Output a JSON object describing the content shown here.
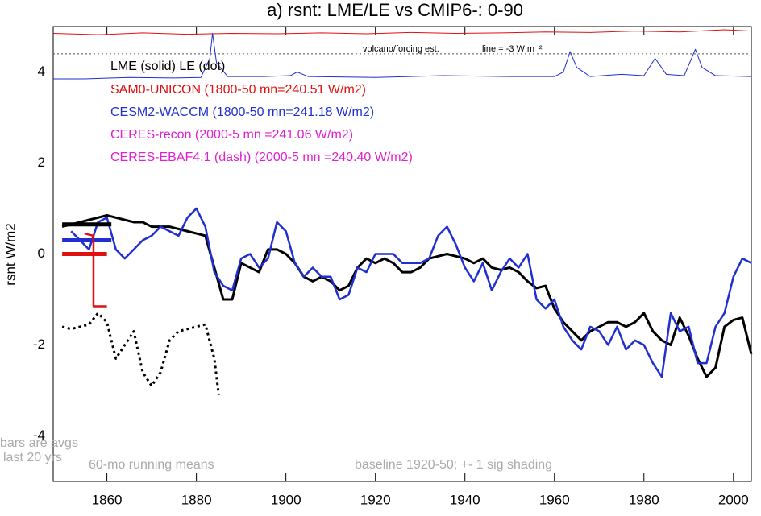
{
  "chart_data": {
    "type": "line",
    "title": "a) rsnt: LME/LE vs CMIP6-: 0-90",
    "y_label": "rsnt W/m2",
    "xlim": [
      1848,
      2004
    ],
    "ylim": [
      -5,
      5
    ],
    "xticks": [
      1860,
      1880,
      1900,
      1920,
      1940,
      1960,
      1980,
      2000
    ],
    "yticks": [
      -4,
      -2,
      0,
      2,
      4
    ],
    "zero_line": true,
    "series": [
      {
        "color": "#000000",
        "width": 3,
        "dash": "none",
        "x": [
          1850,
          1852,
          1854,
          1856,
          1858,
          1860,
          1862,
          1864,
          1866,
          1868,
          1870,
          1872,
          1874,
          1876,
          1878,
          1880,
          1882,
          1884,
          1886,
          1888,
          1890,
          1892,
          1894,
          1896,
          1898,
          1900,
          1902,
          1904,
          1906,
          1908,
          1910,
          1912,
          1914,
          1916,
          1918,
          1920,
          1922,
          1924,
          1926,
          1928,
          1930,
          1932,
          1934,
          1936,
          1938,
          1940,
          1942,
          1944,
          1946,
          1948,
          1950,
          1952,
          1954,
          1956,
          1958,
          1960,
          1962,
          1964,
          1966,
          1968,
          1970,
          1972,
          1974,
          1976,
          1978,
          1980,
          1982,
          1984,
          1986,
          1988,
          1990,
          1992,
          1994,
          1996,
          1998,
          2000,
          2002,
          2004
        ],
        "values": [
          0.6,
          0.65,
          0.7,
          0.75,
          0.8,
          0.85,
          0.8,
          0.75,
          0.7,
          0.7,
          0.6,
          0.6,
          0.6,
          0.55,
          0.5,
          0.45,
          0.4,
          -0.3,
          -1.0,
          -1.0,
          -0.2,
          -0.3,
          -0.4,
          0.1,
          0.1,
          0.0,
          -0.2,
          -0.5,
          -0.6,
          -0.5,
          -0.6,
          -0.8,
          -0.7,
          -0.3,
          -0.1,
          -0.2,
          -0.1,
          -0.2,
          -0.4,
          -0.4,
          -0.3,
          -0.1,
          -0.05,
          0.0,
          -0.05,
          -0.1,
          -0.2,
          -0.1,
          -0.3,
          -0.35,
          -0.3,
          -0.4,
          -0.6,
          -0.75,
          -0.7,
          -1.2,
          -1.5,
          -1.7,
          -1.9,
          -1.7,
          -1.6,
          -1.5,
          -1.5,
          -1.6,
          -1.5,
          -1.3,
          -1.7,
          -1.9,
          -2.0,
          -1.4,
          -1.8,
          -2.3,
          -2.7,
          -2.5,
          -1.6,
          -1.45,
          -1.4,
          -2.2
        ]
      },
      {
        "color": "#1f2fd0",
        "width": 2.5,
        "dash": "none",
        "x": [
          1852,
          1854,
          1856,
          1858,
          1860,
          1862,
          1864,
          1866,
          1868,
          1870,
          1872,
          1874,
          1876,
          1878,
          1880,
          1882,
          1884,
          1886,
          1888,
          1890,
          1892,
          1894,
          1896,
          1898,
          1900,
          1902,
          1904,
          1906,
          1908,
          1910,
          1912,
          1914,
          1916,
          1918,
          1920,
          1922,
          1924,
          1926,
          1928,
          1930,
          1932,
          1934,
          1936,
          1938,
          1940,
          1942,
          1944,
          1946,
          1948,
          1950,
          1952,
          1954,
          1956,
          1958,
          1960,
          1962,
          1964,
          1966,
          1968,
          1970,
          1972,
          1974,
          1976,
          1978,
          1980,
          1982,
          1984,
          1986,
          1988,
          1990,
          1992,
          1994,
          1996,
          1998,
          2000,
          2002,
          2004
        ],
        "values": [
          0.5,
          0.3,
          0.1,
          0.7,
          0.8,
          0.1,
          -0.1,
          0.1,
          0.3,
          0.4,
          0.6,
          0.5,
          0.4,
          0.8,
          1.0,
          0.6,
          -0.4,
          -0.7,
          -0.8,
          -0.1,
          0.0,
          -0.3,
          -0.1,
          0.7,
          0.5,
          -0.2,
          -0.5,
          -0.3,
          -0.5,
          -0.5,
          -1.0,
          -0.9,
          -0.3,
          -0.4,
          0.0,
          0.0,
          0.0,
          -0.2,
          -0.2,
          -0.2,
          -0.1,
          0.4,
          0.6,
          0.2,
          -0.3,
          -0.6,
          -0.2,
          -0.8,
          -0.4,
          -0.1,
          -0.3,
          0.0,
          -1.0,
          -1.2,
          -1.0,
          -1.6,
          -1.9,
          -2.1,
          -1.6,
          -1.7,
          -2.0,
          -1.6,
          -2.1,
          -1.9,
          -2.0,
          -2.4,
          -2.7,
          -1.3,
          -1.7,
          -1.6,
          -2.4,
          -2.4,
          -1.6,
          -1.3,
          -0.5,
          -0.1,
          -0.2
        ]
      },
      {
        "color": "#000000",
        "width": 3,
        "dash": "3 4",
        "x": [
          1850,
          1852,
          1854,
          1856,
          1858,
          1860,
          1862,
          1864,
          1866,
          1868,
          1870,
          1872,
          1874,
          1876,
          1878,
          1880,
          1882,
          1884,
          1885
        ],
        "values": [
          -1.6,
          -1.65,
          -1.6,
          -1.55,
          -1.3,
          -1.5,
          -2.3,
          -2.0,
          -1.7,
          -2.6,
          -2.9,
          -2.6,
          -1.9,
          -1.7,
          -1.65,
          -1.6,
          -1.55,
          -2.3,
          -3.1
        ]
      },
      {
        "color": "#e01010",
        "width": 1,
        "dash": "none",
        "x": [
          1848,
          1858,
          1868,
          1878,
          1888,
          1898,
          1908,
          1918,
          1928,
          1938,
          1948,
          1958,
          1968,
          1978,
          1988,
          1998,
          2004
        ],
        "values": [
          4.85,
          4.82,
          4.86,
          4.83,
          4.85,
          4.84,
          4.86,
          4.84,
          4.87,
          4.85,
          4.86,
          4.88,
          4.87,
          4.9,
          4.88,
          4.93,
          4.9
        ]
      },
      {
        "color": "#1f2fd0",
        "width": 1,
        "dash": "none",
        "x": [
          1848,
          1855,
          1865,
          1875,
          1881,
          1883,
          1883.6,
          1884.5,
          1887,
          1895,
          1901,
          1902.5,
          1905,
          1920,
          1935,
          1950,
          1960,
          1962,
          1963.5,
          1965,
          1968,
          1975,
          1980,
          1982.5,
          1985,
          1989,
          1991.5,
          1993,
          1996,
          2004
        ],
        "values": [
          3.85,
          3.85,
          3.88,
          3.87,
          3.88,
          4.3,
          4.85,
          4.2,
          3.9,
          3.9,
          3.92,
          4.0,
          3.9,
          3.88,
          3.92,
          3.9,
          3.9,
          4.0,
          4.45,
          4.1,
          3.9,
          3.95,
          3.92,
          4.3,
          3.95,
          3.92,
          4.5,
          4.1,
          3.92,
          3.9
        ]
      },
      {
        "color": "#555555",
        "width": 1,
        "dash": "2 3",
        "x": [
          1848,
          2004
        ],
        "values": [
          4.4,
          4.4
        ]
      },
      {
        "color": "#000000",
        "width": 5,
        "dash": "none",
        "x": [
          1850,
          1861
        ],
        "values": [
          0.65,
          0.65
        ]
      },
      {
        "color": "#1f2fd0",
        "width": 5,
        "dash": "none",
        "x": [
          1850,
          1861
        ],
        "values": [
          0.3,
          0.3
        ]
      },
      {
        "color": "#e01010",
        "width": 5,
        "dash": "none",
        "x": [
          1850,
          1860
        ],
        "values": [
          0.0,
          0.0
        ]
      },
      {
        "color": "#e01010",
        "width": 2.5,
        "dash": "none",
        "x": [
          1855,
          1857,
          1857,
          1860
        ],
        "values": [
          0.45,
          0.4,
          -1.15,
          -1.15
        ]
      }
    ],
    "annotations": [
      {
        "text": "LME (solid)    LE (dot)",
        "color": "#000000"
      },
      {
        "text": "SAM0-UNICON (1800-50 mn=240.51 W/m2)",
        "color": "#e01010"
      },
      {
        "text": "CESM2-WACCM (1800-50 mn=241.18 W/m2)",
        "color": "#1f2fd0"
      },
      {
        "text": "CERES-recon (2000-5 mn =241.06 W/m2)",
        "color": "#e020d0"
      },
      {
        "text": "CERES-EBAF4.1 (dash) (2000-5 mn =240.40 W/m2)",
        "color": "#e020d0"
      },
      {
        "text": "volcano/forcing est.",
        "color": "#000000"
      },
      {
        "text": "line = -3 W m⁻²",
        "color": "#000000"
      },
      {
        "text": "bars are avgs",
        "color": "#aaaaaa"
      },
      {
        "text": "last 20 yrs",
        "color": "#aaaaaa"
      },
      {
        "text": "60-mo running means",
        "color": "#aaaaaa"
      },
      {
        "text": "baseline 1920-50; +- 1 sig shading",
        "color": "#aaaaaa"
      }
    ]
  }
}
